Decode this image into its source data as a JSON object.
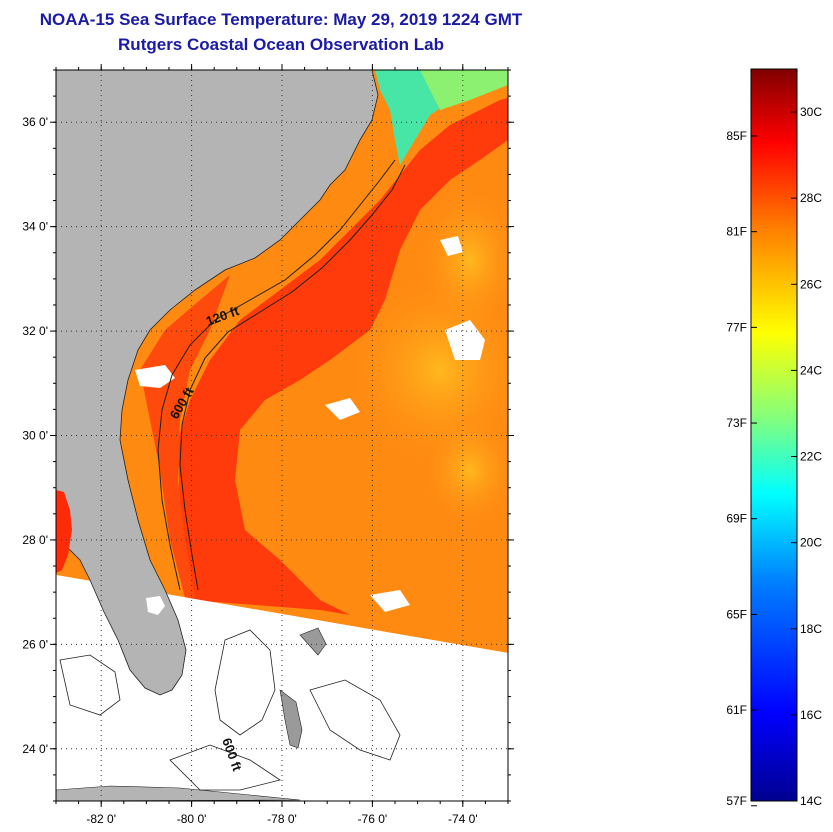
{
  "header": {
    "title": "NOAA-15 Sea Surface Temperature:  May 29, 2019 1224 GMT",
    "subtitle": "Rutgers Coastal Ocean Observation Lab"
  },
  "map": {
    "lat_range": [
      23,
      37
    ],
    "lon_range": [
      -83,
      -73
    ],
    "lat_ticks": [
      {
        "value": 24,
        "label": "24 0'"
      },
      {
        "value": 26,
        "label": "26 0'"
      },
      {
        "value": 28,
        "label": "28 0'"
      },
      {
        "value": 30,
        "label": "30 0'"
      },
      {
        "value": 32,
        "label": "32 0'"
      },
      {
        "value": 34,
        "label": "34 0'"
      },
      {
        "value": 36,
        "label": "36 0'"
      }
    ],
    "lon_ticks": [
      {
        "value": -82,
        "label": "-82 0'"
      },
      {
        "value": -80,
        "label": "-80 0'"
      },
      {
        "value": -78,
        "label": "-78 0'"
      },
      {
        "value": -76,
        "label": "-76 0'"
      },
      {
        "value": -74,
        "label": "-74 0'"
      }
    ],
    "contour_labels": {
      "shelf_120": "120 ft",
      "slope_600": "600 ft",
      "bahamas_600": "600 ft"
    },
    "colors": {
      "land": "#b4b4b4",
      "gulf_stream": "#ff3a0a",
      "shelf_water": "#ff7a0d",
      "offshore_water": "#ff8c12",
      "warm_core": "#ffb21c",
      "cold_north": "#34e0b4",
      "cloud": "#ffffff",
      "contour": "#202020"
    }
  },
  "colorbar": {
    "celsius_labels": [
      "30C",
      "28C",
      "26C",
      "24C",
      "22C",
      "20C",
      "18C",
      "16C",
      "14C"
    ],
    "fahrenheit_labels": [
      "85F",
      "81F",
      "77F",
      "73F",
      "69F",
      "65F",
      "61F",
      "57F"
    ],
    "celsius_range": [
      14,
      31
    ],
    "stops": [
      "#00008f",
      "#0000ff",
      "#0080ff",
      "#00ffff",
      "#80ff80",
      "#ffff00",
      "#ff8000",
      "#ff0000",
      "#800000"
    ]
  }
}
